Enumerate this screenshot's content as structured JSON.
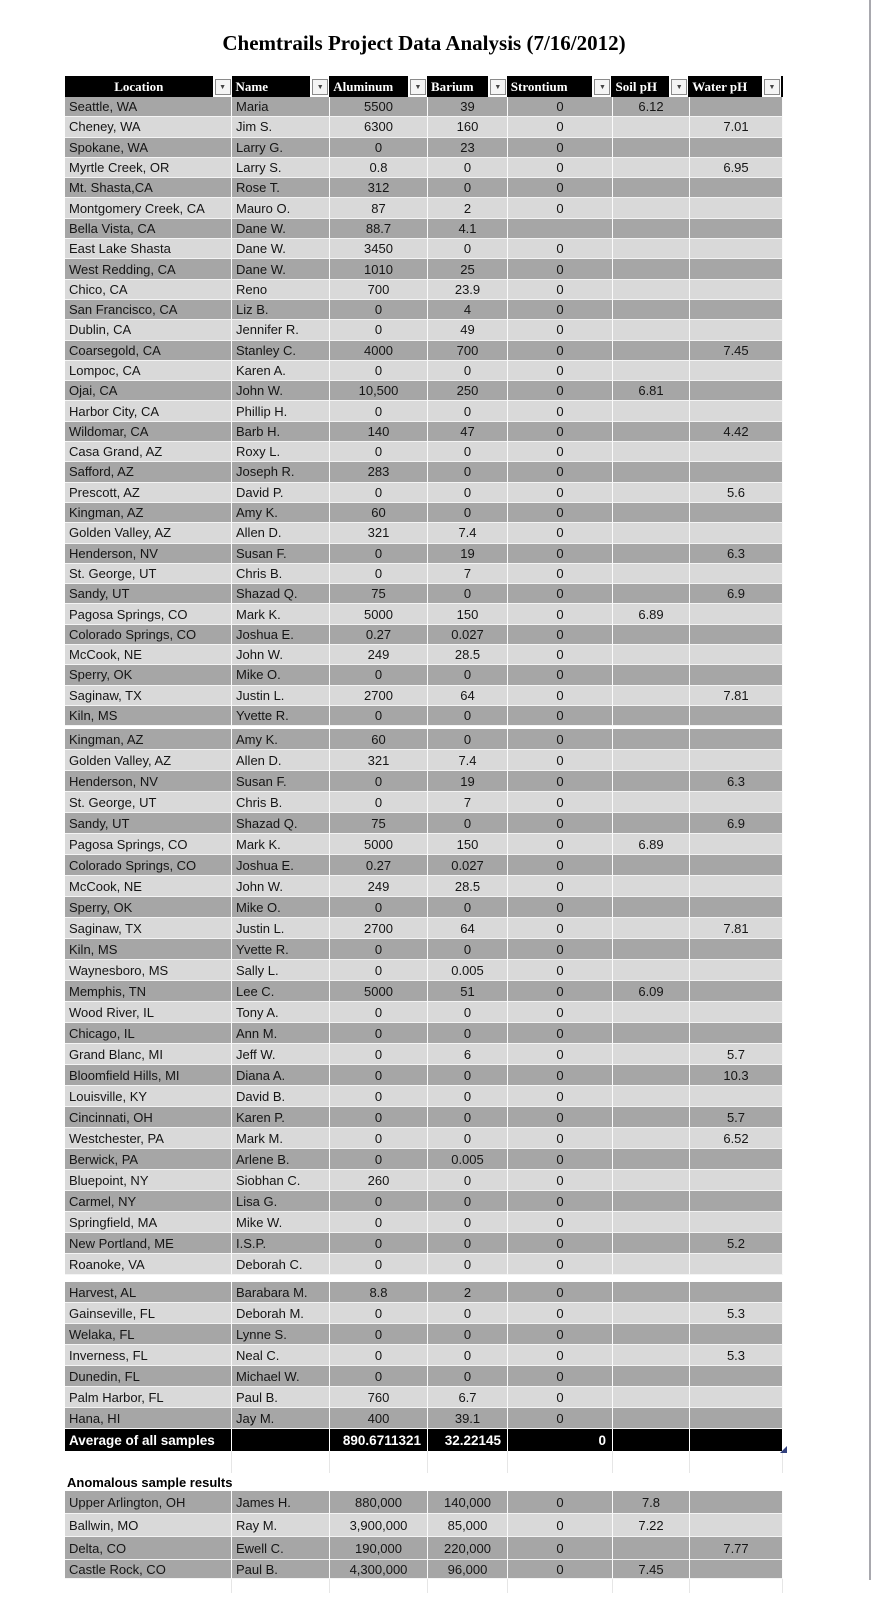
{
  "title": "Chemtrails Project Data Analysis (7/16/2012)",
  "columns": [
    {
      "label": "Location"
    },
    {
      "label": "Name"
    },
    {
      "label": "Aluminum"
    },
    {
      "label": "Barium"
    },
    {
      "label": "Strontium"
    },
    {
      "label": "Soil pH"
    },
    {
      "label": "Water pH"
    }
  ],
  "filter_icon": "▼",
  "colors": {
    "row_dark": "#a6a6a6",
    "row_light": "#d9d9d9",
    "header_bg": "#000000",
    "summary_bg": "#000000",
    "summary_text": "#ffffff",
    "corner_mark_blue": "#33417e"
  },
  "sections": [
    {
      "name": "main-top",
      "rows": [
        {
          "location": "Seattle, WA",
          "name": "Maria",
          "aluminum": "5500",
          "barium": "39",
          "strontium": "0",
          "soil_ph": "6.12",
          "water_ph": "",
          "shade": "dark"
        },
        {
          "location": "Cheney, WA",
          "name": "Jim S.",
          "aluminum": "6300",
          "barium": "160",
          "strontium": "0",
          "soil_ph": "",
          "water_ph": "7.01",
          "shade": "light"
        },
        {
          "location": "Spokane, WA",
          "name": "Larry G.",
          "aluminum": "0",
          "barium": "23",
          "strontium": "0",
          "soil_ph": "",
          "water_ph": "",
          "shade": "dark"
        },
        {
          "location": "Myrtle Creek, OR",
          "name": "Larry S.",
          "aluminum": "0.8",
          "barium": "0",
          "strontium": "0",
          "soil_ph": "",
          "water_ph": "6.95",
          "shade": "light"
        },
        {
          "location": "Mt. Shasta,CA",
          "name": "Rose T.",
          "aluminum": "312",
          "barium": "0",
          "strontium": "0",
          "soil_ph": "",
          "water_ph": "",
          "shade": "dark"
        },
        {
          "location": "Montgomery Creek, CA",
          "name": "Mauro O.",
          "aluminum": "87",
          "barium": "2",
          "strontium": "0",
          "soil_ph": "",
          "water_ph": "",
          "shade": "light"
        },
        {
          "location": "Bella Vista, CA",
          "name": "Dane W.",
          "aluminum": "88.7",
          "barium": "4.1",
          "strontium": "",
          "soil_ph": "",
          "water_ph": "",
          "shade": "dark"
        },
        {
          "location": "East Lake Shasta",
          "name": "Dane W.",
          "aluminum": "3450",
          "barium": "0",
          "strontium": "0",
          "soil_ph": "",
          "water_ph": "",
          "shade": "light"
        },
        {
          "location": "West Redding, CA",
          "name": "Dane W.",
          "aluminum": "1010",
          "barium": "25",
          "strontium": "0",
          "soil_ph": "",
          "water_ph": "",
          "shade": "dark"
        },
        {
          "location": "Chico, CA",
          "name": "Reno",
          "aluminum": "700",
          "barium": "23.9",
          "strontium": "0",
          "soil_ph": "",
          "water_ph": "",
          "shade": "light"
        },
        {
          "location": "San Francisco, CA",
          "name": "Liz B.",
          "aluminum": "0",
          "barium": "4",
          "strontium": "0",
          "soil_ph": "",
          "water_ph": "",
          "shade": "dark"
        },
        {
          "location": "Dublin, CA",
          "name": "Jennifer R.",
          "aluminum": "0",
          "barium": "49",
          "strontium": "0",
          "soil_ph": "",
          "water_ph": "",
          "shade": "light"
        },
        {
          "location": "Coarsegold, CA",
          "name": "Stanley C.",
          "aluminum": "4000",
          "barium": "700",
          "strontium": "0",
          "soil_ph": "",
          "water_ph": "7.45",
          "shade": "dark"
        },
        {
          "location": "Lompoc, CA",
          "name": "Karen A.",
          "aluminum": "0",
          "barium": "0",
          "strontium": "0",
          "soil_ph": "",
          "water_ph": "",
          "shade": "light"
        },
        {
          "location": "Ojai, CA",
          "name": "John W.",
          "aluminum": "10,500",
          "barium": "250",
          "strontium": "0",
          "soil_ph": "6.81",
          "water_ph": "",
          "shade": "dark"
        },
        {
          "location": "Harbor City, CA",
          "name": "Phillip H.",
          "aluminum": "0",
          "barium": "0",
          "strontium": "0",
          "soil_ph": "",
          "water_ph": "",
          "shade": "light"
        },
        {
          "location": "Wildomar, CA",
          "name": "Barb H.",
          "aluminum": "140",
          "barium": "47",
          "strontium": "0",
          "soil_ph": "",
          "water_ph": "4.42",
          "shade": "dark"
        },
        {
          "location": "Casa Grand, AZ",
          "name": "Roxy L.",
          "aluminum": "0",
          "barium": "0",
          "strontium": "0",
          "soil_ph": "",
          "water_ph": "",
          "shade": "light"
        },
        {
          "location": "Safford, AZ",
          "name": "Joseph R.",
          "aluminum": "283",
          "barium": "0",
          "strontium": "0",
          "soil_ph": "",
          "water_ph": "",
          "shade": "dark"
        },
        {
          "location": "Prescott, AZ",
          "name": "David P.",
          "aluminum": "0",
          "barium": "0",
          "strontium": "0",
          "soil_ph": "",
          "water_ph": "5.6",
          "shade": "light"
        },
        {
          "location": "Kingman, AZ",
          "name": "Amy K.",
          "aluminum": "60",
          "barium": "0",
          "strontium": "0",
          "soil_ph": "",
          "water_ph": "",
          "shade": "dark"
        },
        {
          "location": "Golden Valley, AZ",
          "name": "Allen D.",
          "aluminum": "321",
          "barium": "7.4",
          "strontium": "0",
          "soil_ph": "",
          "water_ph": "",
          "shade": "light"
        },
        {
          "location": "Henderson, NV",
          "name": "Susan F.",
          "aluminum": "0",
          "barium": "19",
          "strontium": "0",
          "soil_ph": "",
          "water_ph": "6.3",
          "shade": "dark"
        },
        {
          "location": "St. George, UT",
          "name": "Chris B.",
          "aluminum": "0",
          "barium": "7",
          "strontium": "0",
          "soil_ph": "",
          "water_ph": "",
          "shade": "light"
        },
        {
          "location": "Sandy, UT",
          "name": "Shazad Q.",
          "aluminum": "75",
          "barium": "0",
          "strontium": "0",
          "soil_ph": "",
          "water_ph": "6.9",
          "shade": "dark"
        },
        {
          "location": "Pagosa Springs, CO",
          "name": "Mark K.",
          "aluminum": "5000",
          "barium": "150",
          "strontium": "0",
          "soil_ph": "6.89",
          "water_ph": "",
          "shade": "light"
        },
        {
          "location": "Colorado Springs, CO",
          "name": "Joshua E.",
          "aluminum": "0.27",
          "barium": "0.027",
          "strontium": "0",
          "soil_ph": "",
          "water_ph": "",
          "shade": "dark"
        },
        {
          "location": "McCook, NE",
          "name": "John W.",
          "aluminum": "249",
          "barium": "28.5",
          "strontium": "0",
          "soil_ph": "",
          "water_ph": "",
          "shade": "light"
        },
        {
          "location": "Sperry, OK",
          "name": "Mike O.",
          "aluminum": "0",
          "barium": "0",
          "strontium": "0",
          "soil_ph": "",
          "water_ph": "",
          "shade": "dark"
        },
        {
          "location": "Saginaw, TX",
          "name": "Justin L.",
          "aluminum": "2700",
          "barium": "64",
          "strontium": "0",
          "soil_ph": "",
          "water_ph": "7.81",
          "shade": "light"
        },
        {
          "location": "Kiln, MS",
          "name": "Yvette R.",
          "aluminum": "0",
          "barium": "0",
          "strontium": "0",
          "soil_ph": "",
          "water_ph": "",
          "shade": "dark"
        }
      ]
    },
    {
      "name": "scrolled-overlap",
      "rows": [
        {
          "location": "Kingman, AZ",
          "name": "Amy K.",
          "aluminum": "60",
          "barium": "0",
          "strontium": "0",
          "soil_ph": "",
          "water_ph": "",
          "shade": "dark"
        },
        {
          "location": "Golden Valley, AZ",
          "name": "Allen D.",
          "aluminum": "321",
          "barium": "7.4",
          "strontium": "0",
          "soil_ph": "",
          "water_ph": "",
          "shade": "light"
        },
        {
          "location": "Henderson, NV",
          "name": "Susan F.",
          "aluminum": "0",
          "barium": "19",
          "strontium": "0",
          "soil_ph": "",
          "water_ph": "6.3",
          "shade": "dark"
        },
        {
          "location": "St. George, UT",
          "name": "Chris B.",
          "aluminum": "0",
          "barium": "7",
          "strontium": "0",
          "soil_ph": "",
          "water_ph": "",
          "shade": "light"
        },
        {
          "location": "Sandy, UT",
          "name": "Shazad Q.",
          "aluminum": "75",
          "barium": "0",
          "strontium": "0",
          "soil_ph": "",
          "water_ph": "6.9",
          "shade": "dark"
        },
        {
          "location": "Pagosa Springs, CO",
          "name": "Mark K.",
          "aluminum": "5000",
          "barium": "150",
          "strontium": "0",
          "soil_ph": "6.89",
          "water_ph": "",
          "shade": "light"
        },
        {
          "location": "Colorado Springs, CO",
          "name": "Joshua E.",
          "aluminum": "0.27",
          "barium": "0.027",
          "strontium": "0",
          "soil_ph": "",
          "water_ph": "",
          "shade": "dark"
        },
        {
          "location": "McCook, NE",
          "name": "John W.",
          "aluminum": "249",
          "barium": "28.5",
          "strontium": "0",
          "soil_ph": "",
          "water_ph": "",
          "shade": "light"
        },
        {
          "location": "Sperry, OK",
          "name": "Mike O.",
          "aluminum": "0",
          "barium": "0",
          "strontium": "0",
          "soil_ph": "",
          "water_ph": "",
          "shade": "dark"
        },
        {
          "location": "Saginaw, TX",
          "name": "Justin L.",
          "aluminum": "2700",
          "barium": "64",
          "strontium": "0",
          "soil_ph": "",
          "water_ph": "7.81",
          "shade": "light"
        },
        {
          "location": "Kiln, MS",
          "name": "Yvette R.",
          "aluminum": "0",
          "barium": "0",
          "strontium": "0",
          "soil_ph": "",
          "water_ph": "",
          "shade": "dark"
        },
        {
          "location": "Waynesboro, MS",
          "name": "Sally L.",
          "aluminum": "0",
          "barium": "0.005",
          "strontium": "0",
          "soil_ph": "",
          "water_ph": "",
          "shade": "light"
        },
        {
          "location": "Memphis, TN",
          "name": "Lee C.",
          "aluminum": "5000",
          "barium": "51",
          "strontium": "0",
          "soil_ph": "6.09",
          "water_ph": "",
          "shade": "dark"
        },
        {
          "location": "Wood River, IL",
          "name": "Tony A.",
          "aluminum": "0",
          "barium": "0",
          "strontium": "0",
          "soil_ph": "",
          "water_ph": "",
          "shade": "light"
        },
        {
          "location": "Chicago, IL",
          "name": "Ann M.",
          "aluminum": "0",
          "barium": "0",
          "strontium": "0",
          "soil_ph": "",
          "water_ph": "",
          "shade": "dark"
        },
        {
          "location": "Grand Blanc, MI",
          "name": "Jeff W.",
          "aluminum": "0",
          "barium": "6",
          "strontium": "0",
          "soil_ph": "",
          "water_ph": "5.7",
          "shade": "light"
        },
        {
          "location": "Bloomfield Hills, MI",
          "name": "Diana A.",
          "aluminum": "0",
          "barium": "0",
          "strontium": "0",
          "soil_ph": "",
          "water_ph": "10.3",
          "shade": "dark"
        },
        {
          "location": "Louisville, KY",
          "name": "David B.",
          "aluminum": "0",
          "barium": "0",
          "strontium": "0",
          "soil_ph": "",
          "water_ph": "",
          "shade": "light"
        },
        {
          "location": "Cincinnati, OH",
          "name": "Karen P.",
          "aluminum": "0",
          "barium": "0",
          "strontium": "0",
          "soil_ph": "",
          "water_ph": "5.7",
          "shade": "dark"
        },
        {
          "location": "Westchester, PA",
          "name": "Mark M.",
          "aluminum": "0",
          "barium": "0",
          "strontium": "0",
          "soil_ph": "",
          "water_ph": "6.52",
          "shade": "light"
        },
        {
          "location": "Berwick, PA",
          "name": "Arlene B.",
          "aluminum": "0",
          "barium": "0.005",
          "strontium": "0",
          "soil_ph": "",
          "water_ph": "",
          "shade": "dark"
        },
        {
          "location": "Bluepoint, NY",
          "name": "Siobhan C.",
          "aluminum": "260",
          "barium": "0",
          "strontium": "0",
          "soil_ph": "",
          "water_ph": "",
          "shade": "light"
        },
        {
          "location": "Carmel, NY",
          "name": "Lisa G.",
          "aluminum": "0",
          "barium": "0",
          "strontium": "0",
          "soil_ph": "",
          "water_ph": "",
          "shade": "dark"
        },
        {
          "location": "Springfield, MA",
          "name": "Mike W.",
          "aluminum": "0",
          "barium": "0",
          "strontium": "0",
          "soil_ph": "",
          "water_ph": "",
          "shade": "light"
        },
        {
          "location": "New Portland, ME",
          "name": "I.S.P.",
          "aluminum": "0",
          "barium": "0",
          "strontium": "0",
          "soil_ph": "",
          "water_ph": "5.2",
          "shade": "dark"
        },
        {
          "location": "Roanoke, VA",
          "name": "Deborah C.",
          "aluminum": "0",
          "barium": "0",
          "strontium": "0",
          "soil_ph": "",
          "water_ph": "",
          "shade": "light"
        }
      ]
    },
    {
      "name": "south-east",
      "rows": [
        {
          "location": "Harvest, AL",
          "name": "Barabara M.",
          "aluminum": "8.8",
          "barium": "2",
          "strontium": "0",
          "soil_ph": "",
          "water_ph": "",
          "shade": "dark"
        },
        {
          "location": "Gainseville, FL",
          "name": "Deborah M.",
          "aluminum": "0",
          "barium": "0",
          "strontium": "0",
          "soil_ph": "",
          "water_ph": "5.3",
          "shade": "light"
        },
        {
          "location": "Welaka, FL",
          "name": "Lynne S.",
          "aluminum": "0",
          "barium": "0",
          "strontium": "0",
          "soil_ph": "",
          "water_ph": "",
          "shade": "dark"
        },
        {
          "location": "Inverness, FL",
          "name": "Neal C.",
          "aluminum": "0",
          "barium": "0",
          "strontium": "0",
          "soil_ph": "",
          "water_ph": "5.3",
          "shade": "light"
        },
        {
          "location": "Dunedin, FL",
          "name": "Michael W.",
          "aluminum": "0",
          "barium": "0",
          "strontium": "0",
          "soil_ph": "",
          "water_ph": "",
          "shade": "dark"
        },
        {
          "location": "Palm Harbor, FL",
          "name": "Paul B.",
          "aluminum": "760",
          "barium": "6.7",
          "strontium": "0",
          "soil_ph": "",
          "water_ph": "",
          "shade": "light"
        },
        {
          "location": "Hana, HI",
          "name": "Jay M.",
          "aluminum": "400",
          "barium": "39.1",
          "strontium": "0",
          "soil_ph": "",
          "water_ph": "",
          "shade": "dark"
        }
      ]
    }
  ],
  "summary": {
    "label": "Average of all samples",
    "name": "",
    "aluminum": "890.6711321",
    "barium": "32.22145",
    "strontium": "0",
    "soil_ph": "",
    "water_ph": ""
  },
  "anomalous": {
    "heading": "Anomalous sample results",
    "rows": [
      {
        "location": "Upper Arlington, OH",
        "name": "James H.",
        "aluminum": "880,000",
        "barium": "140,000",
        "strontium": "0",
        "soil_ph": "7.8",
        "water_ph": "",
        "shade": "dark"
      },
      {
        "location": "Ballwin, MO",
        "name": "Ray M.",
        "aluminum": "3,900,000",
        "barium": "85,000",
        "strontium": "0",
        "soil_ph": "7.22",
        "water_ph": "",
        "shade": "light"
      },
      {
        "location": "Delta, CO",
        "name": "Ewell C.",
        "aluminum": "190,000",
        "barium": "220,000",
        "strontium": "0",
        "soil_ph": "",
        "water_ph": "7.77",
        "shade": "dark"
      },
      {
        "location": "Castle Rock, CO",
        "name": "Paul B.",
        "aluminum": "4,300,000",
        "barium": "96,000",
        "strontium": "0",
        "soil_ph": "7.45",
        "water_ph": "",
        "shade": "dark"
      }
    ]
  }
}
